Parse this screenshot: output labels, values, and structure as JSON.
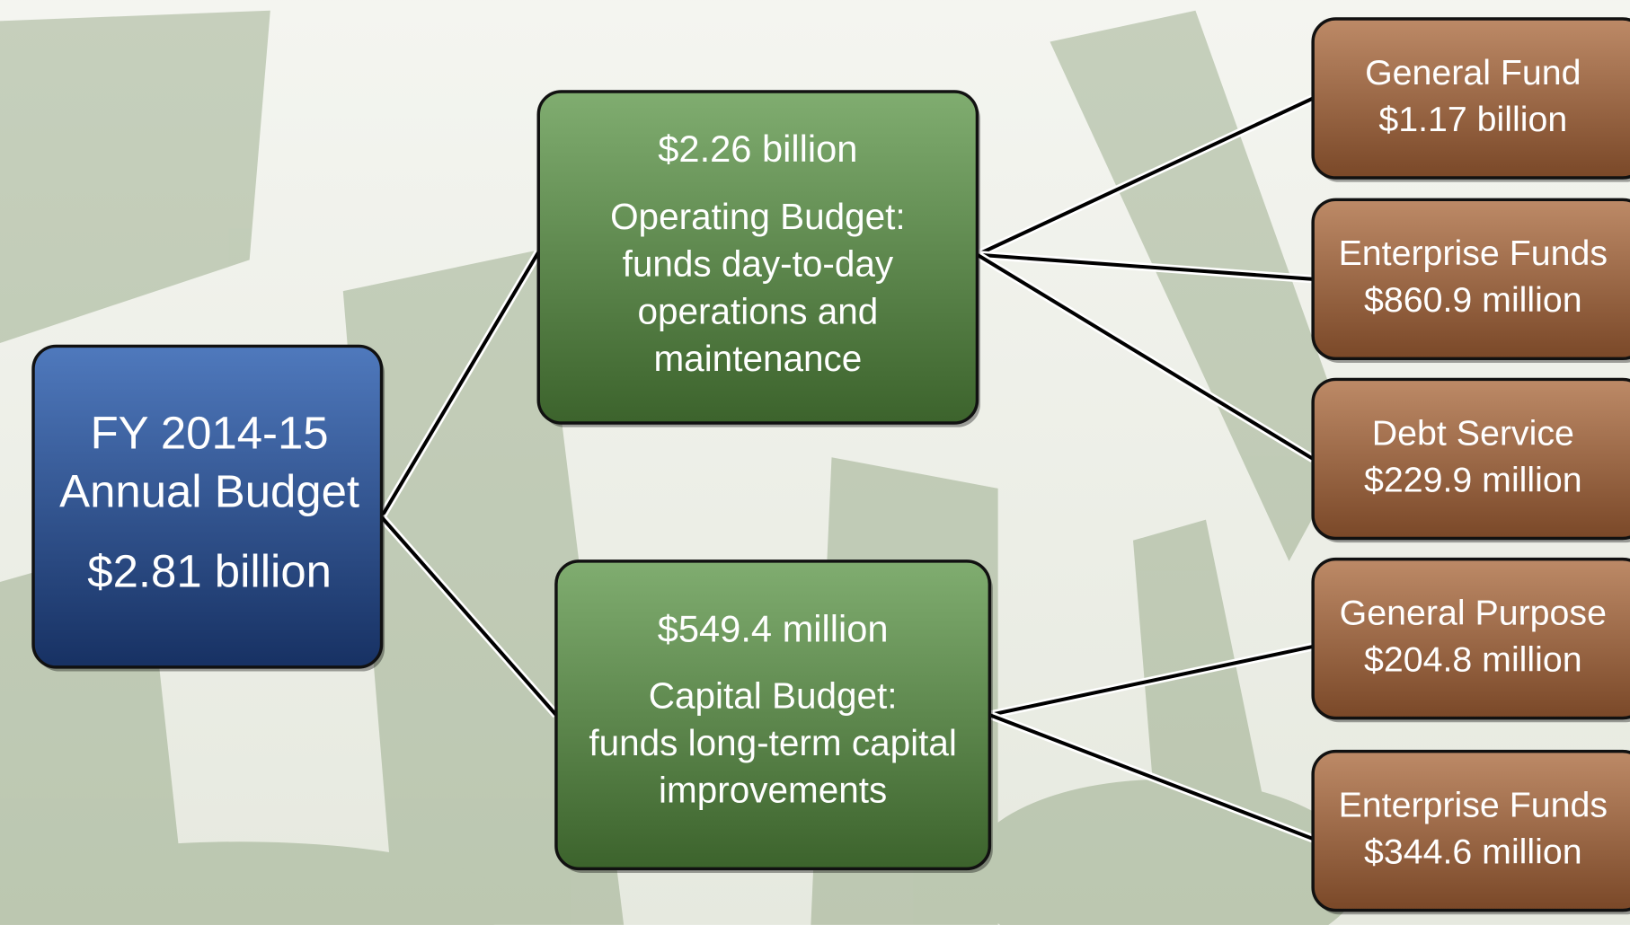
{
  "root": {
    "lines": [
      "FY 2014-15",
      "Annual Budget"
    ],
    "amount": "$2.81 billion"
  },
  "branches": [
    {
      "amount": "$2.26 billion",
      "lines": [
        "Operating Budget:",
        "funds day-to-day",
        "operations and",
        "maintenance"
      ],
      "children": [
        {
          "name": "General Fund",
          "amount": "$1.17 billion"
        },
        {
          "name": "Enterprise Funds",
          "amount": "$860.9 million"
        },
        {
          "name": "Debt Service",
          "amount": "$229.9 million"
        }
      ]
    },
    {
      "amount": "$549.4 million",
      "lines": [
        "Capital Budget:",
        "funds long-term capital",
        "improvements"
      ],
      "children": [
        {
          "name": "General Purpose",
          "amount": "$204.8 million"
        },
        {
          "name": "Enterprise Funds",
          "amount": "$344.6 million"
        }
      ]
    }
  ]
}
